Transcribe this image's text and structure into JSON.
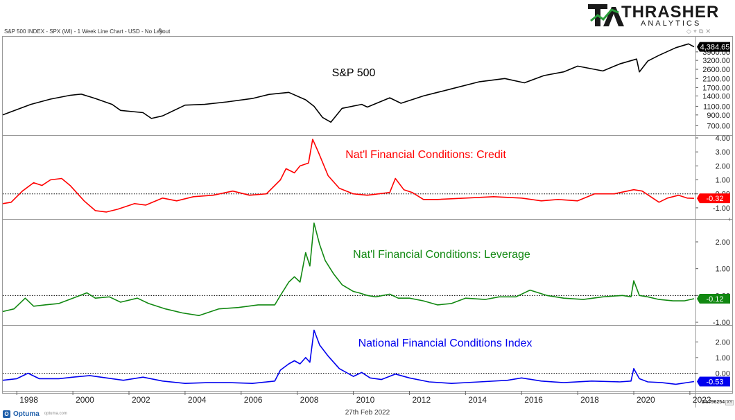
{
  "header": {
    "title": "S&P 500 INDEX - SPX (WI) - 1 Week Line Chart - USD - No Layout",
    "logo_name": "THRASHER",
    "logo_sub": "ANALYTICS"
  },
  "footer": {
    "brand": "Optuma",
    "brand_url": "optuma.com",
    "date": "27th Feb 2022",
    "readout": "24.796254",
    "readout_tag": "XY"
  },
  "colors": {
    "spx": "#000000",
    "credit": "#ff0000",
    "leverage": "#118811",
    "nfci": "#0000ee",
    "zero_line": "#000000"
  },
  "icons": [
    "pencil-icon",
    "diamond-icon",
    "pin-icon",
    "restore-icon",
    "close-icon",
    "collapse-arrow-icon"
  ],
  "chart_data": [
    {
      "type": "line",
      "name": "spx",
      "title": "S&P 500",
      "scale": "log",
      "ylim": [
        600,
        5200
      ],
      "yticks": [
        700,
        900,
        1100,
        1400,
        1700,
        2100,
        2600,
        3200,
        3900
      ],
      "ytick_labels": [
        "700.00",
        "900.00",
        "1100.00",
        "1400.00",
        "1700.00",
        "2100.00",
        "2600.00",
        "3200.00",
        "3900.00"
      ],
      "last_value": 4384.65,
      "last_label": "4,384.65",
      "x": [
        1997.5,
        1998.5,
        1999.2,
        1999.9,
        2000.3,
        2000.8,
        2001.4,
        2001.7,
        2002.5,
        2002.8,
        2003.2,
        2004.0,
        2004.7,
        2005.5,
        2006.4,
        2007.0,
        2007.7,
        2008.3,
        2008.6,
        2008.9,
        2009.2,
        2009.6,
        2010.3,
        2010.5,
        2011.3,
        2011.7,
        2012.5,
        2013.5,
        2014.5,
        2015.4,
        2016.1,
        2016.8,
        2017.5,
        2018.0,
        2018.9,
        2019.5,
        2020.1,
        2020.2,
        2020.5,
        2020.9,
        2021.5,
        2021.95,
        2022.15
      ],
      "values": [
        900,
        1150,
        1300,
        1420,
        1460,
        1320,
        1150,
        1000,
        950,
        830,
        880,
        1130,
        1150,
        1220,
        1320,
        1450,
        1520,
        1280,
        1100,
        850,
        760,
        1050,
        1150,
        1080,
        1340,
        1180,
        1400,
        1650,
        1950,
        2100,
        1900,
        2250,
        2450,
        2800,
        2500,
        2950,
        3300,
        2450,
        3150,
        3600,
        4300,
        4700,
        4384.65
      ]
    },
    {
      "type": "line",
      "name": "credit",
      "title": "Nat'l Financial Conditions: Credit",
      "ylim": [
        -1.6,
        4.0
      ],
      "yticks": [
        -1,
        0,
        1,
        2,
        3,
        4
      ],
      "ytick_labels": [
        "-1.00",
        "0.00",
        "1.00",
        "2.00",
        "3.00",
        "4.00"
      ],
      "reference_line": 0,
      "last_value": -0.32,
      "last_label": "-0.32",
      "x": [
        1997.5,
        1997.8,
        1998.2,
        1998.6,
        1998.9,
        1999.2,
        1999.6,
        1999.9,
        2000.4,
        2000.8,
        2001.2,
        2001.6,
        2002.2,
        2002.6,
        2003.2,
        2003.7,
        2004.3,
        2005.0,
        2005.7,
        2006.3,
        2006.9,
        2007.4,
        2007.6,
        2007.9,
        2008.1,
        2008.4,
        2008.55,
        2008.75,
        2009.1,
        2009.5,
        2010.0,
        2010.5,
        2010.9,
        2011.3,
        2011.5,
        2011.8,
        2012.1,
        2012.5,
        2013.0,
        2014.0,
        2015.0,
        2016.0,
        2016.7,
        2017.3,
        2018.0,
        2018.6,
        2019.3,
        2020.0,
        2020.3,
        2020.9,
        2021.2,
        2021.6,
        2021.9,
        2022.15
      ],
      "values": [
        -0.7,
        -0.6,
        0.2,
        0.8,
        0.6,
        1.0,
        1.1,
        0.6,
        -0.5,
        -1.2,
        -1.3,
        -1.1,
        -0.7,
        -0.8,
        -0.3,
        -0.5,
        -0.2,
        -0.1,
        0.2,
        -0.1,
        0.0,
        1.0,
        1.8,
        1.5,
        2.0,
        2.2,
        3.9,
        3.0,
        1.3,
        0.4,
        0.0,
        -0.1,
        0.0,
        0.1,
        1.1,
        0.3,
        0.1,
        -0.4,
        -0.4,
        -0.3,
        -0.2,
        -0.3,
        -0.5,
        -0.4,
        -0.5,
        0.0,
        0.0,
        0.3,
        0.2,
        -0.6,
        -0.3,
        -0.1,
        -0.3,
        -0.32
      ]
    },
    {
      "type": "line",
      "name": "leverage",
      "title": "Nat'l Financial Conditions: Leverage",
      "ylim": [
        -1.0,
        2.75
      ],
      "yticks": [
        -1,
        0,
        1,
        2
      ],
      "ytick_labels": [
        "-1.00",
        "0.00",
        "1.00",
        "2.00"
      ],
      "reference_line": 0,
      "last_value": -0.12,
      "last_label": "-0.12",
      "x": [
        1997.5,
        1997.9,
        1998.3,
        1998.6,
        1999.0,
        1999.5,
        2000.0,
        2000.5,
        2000.8,
        2001.3,
        2001.7,
        2002.3,
        2002.7,
        2003.3,
        2003.9,
        2004.5,
        2005.2,
        2005.9,
        2006.6,
        2007.2,
        2007.4,
        2007.7,
        2007.9,
        2008.1,
        2008.3,
        2008.45,
        2008.6,
        2008.8,
        2009.0,
        2009.3,
        2009.6,
        2010.0,
        2010.2,
        2010.5,
        2010.8,
        2011.3,
        2011.6,
        2012.0,
        2012.5,
        2013.0,
        2013.5,
        2014.0,
        2014.7,
        2015.2,
        2015.8,
        2016.3,
        2016.9,
        2017.5,
        2018.2,
        2018.9,
        2019.6,
        2019.9,
        2020.0,
        2020.2,
        2020.5,
        2020.9,
        2021.4,
        2021.8,
        2022.15
      ],
      "values": [
        -0.6,
        -0.5,
        -0.1,
        -0.4,
        -0.35,
        -0.3,
        -0.1,
        0.1,
        -0.1,
        -0.05,
        -0.25,
        -0.1,
        -0.3,
        -0.5,
        -0.65,
        -0.75,
        -0.5,
        -0.45,
        -0.35,
        -0.35,
        0.0,
        0.5,
        0.7,
        0.5,
        1.6,
        1.1,
        2.7,
        1.9,
        1.3,
        0.8,
        0.4,
        0.15,
        0.1,
        0.0,
        -0.05,
        0.05,
        -0.1,
        -0.1,
        -0.2,
        -0.35,
        -0.3,
        -0.1,
        -0.15,
        -0.05,
        -0.05,
        0.2,
        0.0,
        -0.1,
        -0.15,
        -0.05,
        0.0,
        -0.05,
        0.55,
        0.0,
        -0.05,
        -0.15,
        -0.2,
        -0.2,
        -0.12
      ]
    },
    {
      "type": "line",
      "name": "nfci",
      "title": "National Financial Conditions Index",
      "ylim": [
        -0.95,
        2.9
      ],
      "yticks": [
        0,
        1,
        2
      ],
      "ytick_labels": [
        "0.00",
        "1.00",
        "2.00"
      ],
      "reference_line": 0,
      "last_value": -0.53,
      "last_label": "-0.53",
      "x": [
        1997.5,
        1998.0,
        1998.4,
        1998.8,
        1999.5,
        2000.0,
        2000.6,
        2001.2,
        2001.8,
        2002.5,
        2003.2,
        2004.0,
        2004.8,
        2005.6,
        2006.4,
        2007.2,
        2007.4,
        2007.7,
        2007.9,
        2008.1,
        2008.3,
        2008.45,
        2008.6,
        2008.8,
        2009.1,
        2009.5,
        2010.0,
        2010.3,
        2010.6,
        2011.0,
        2011.5,
        2012.0,
        2012.7,
        2013.5,
        2014.5,
        2015.5,
        2016.0,
        2016.7,
        2017.5,
        2018.5,
        2019.5,
        2019.9,
        2020.0,
        2020.2,
        2020.5,
        2021.0,
        2021.5,
        2022.15
      ],
      "values": [
        -0.45,
        -0.35,
        0.0,
        -0.35,
        -0.35,
        -0.25,
        -0.15,
        -0.3,
        -0.45,
        -0.25,
        -0.5,
        -0.65,
        -0.6,
        -0.6,
        -0.65,
        -0.5,
        0.2,
        0.6,
        0.8,
        0.6,
        1.0,
        0.7,
        2.75,
        1.8,
        1.1,
        0.3,
        -0.2,
        0.05,
        -0.3,
        -0.4,
        -0.05,
        -0.3,
        -0.55,
        -0.65,
        -0.55,
        -0.45,
        -0.3,
        -0.5,
        -0.6,
        -0.5,
        -0.55,
        -0.5,
        0.3,
        -0.35,
        -0.55,
        -0.6,
        -0.7,
        -0.53
      ]
    }
  ],
  "x_axis": {
    "range": [
      1997.5,
      2022.2
    ],
    "ticks": [
      1998,
      2000,
      2002,
      2004,
      2006,
      2008,
      2010,
      2012,
      2014,
      2016,
      2018,
      2020,
      2022
    ],
    "labels": [
      "1998",
      "2000",
      "2002",
      "2004",
      "2006",
      "2008",
      "2010",
      "2012",
      "2014",
      "2016",
      "2018",
      "2020",
      "2022"
    ]
  }
}
